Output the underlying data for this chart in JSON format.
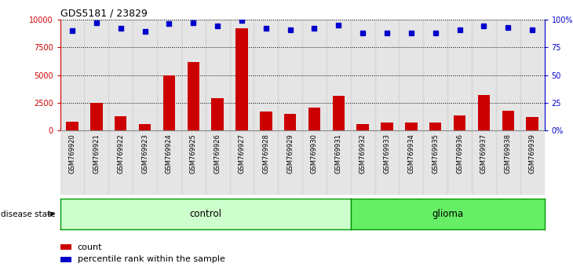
{
  "title": "GDS5181 / 23829",
  "samples": [
    "GSM769920",
    "GSM769921",
    "GSM769922",
    "GSM769923",
    "GSM769924",
    "GSM769925",
    "GSM769926",
    "GSM769927",
    "GSM769928",
    "GSM769929",
    "GSM769930",
    "GSM769931",
    "GSM769932",
    "GSM769933",
    "GSM769934",
    "GSM769935",
    "GSM769936",
    "GSM769937",
    "GSM769938",
    "GSM769939"
  ],
  "counts": [
    800,
    2500,
    1300,
    600,
    5000,
    6200,
    2900,
    9200,
    1700,
    1500,
    2100,
    3100,
    600,
    700,
    750,
    700,
    1400,
    3200,
    1800,
    1200
  ],
  "percentiles": [
    90,
    97,
    92,
    89,
    96,
    97,
    94,
    99,
    92,
    91,
    92,
    95,
    88,
    88,
    88,
    88,
    91,
    94,
    93,
    91
  ],
  "bar_color": "#cc0000",
  "dot_color": "#0000cc",
  "ylim_left": [
    0,
    10000
  ],
  "ylim_right": [
    0,
    100
  ],
  "yticks_left": [
    0,
    2500,
    5000,
    7500,
    10000
  ],
  "yticks_right": [
    0,
    25,
    50,
    75,
    100
  ],
  "ytick_labels_left": [
    "0",
    "2500",
    "5000",
    "7500",
    "10000"
  ],
  "ytick_labels_right": [
    "0%",
    "25",
    "50",
    "75",
    "100%"
  ],
  "control_label": "control",
  "glioma_label": "glioma",
  "disease_state_label": "disease state",
  "legend_count_label": "count",
  "legend_pct_label": "percentile rank within the sample",
  "control_color": "#ccffcc",
  "glioma_color": "#66ee66",
  "control_border": "#009900",
  "n_control": 12,
  "n_glioma": 8,
  "axis_left_color": "#cc0000",
  "axis_right_color": "#0000cc",
  "col_bg_color": "#d4d4d4"
}
